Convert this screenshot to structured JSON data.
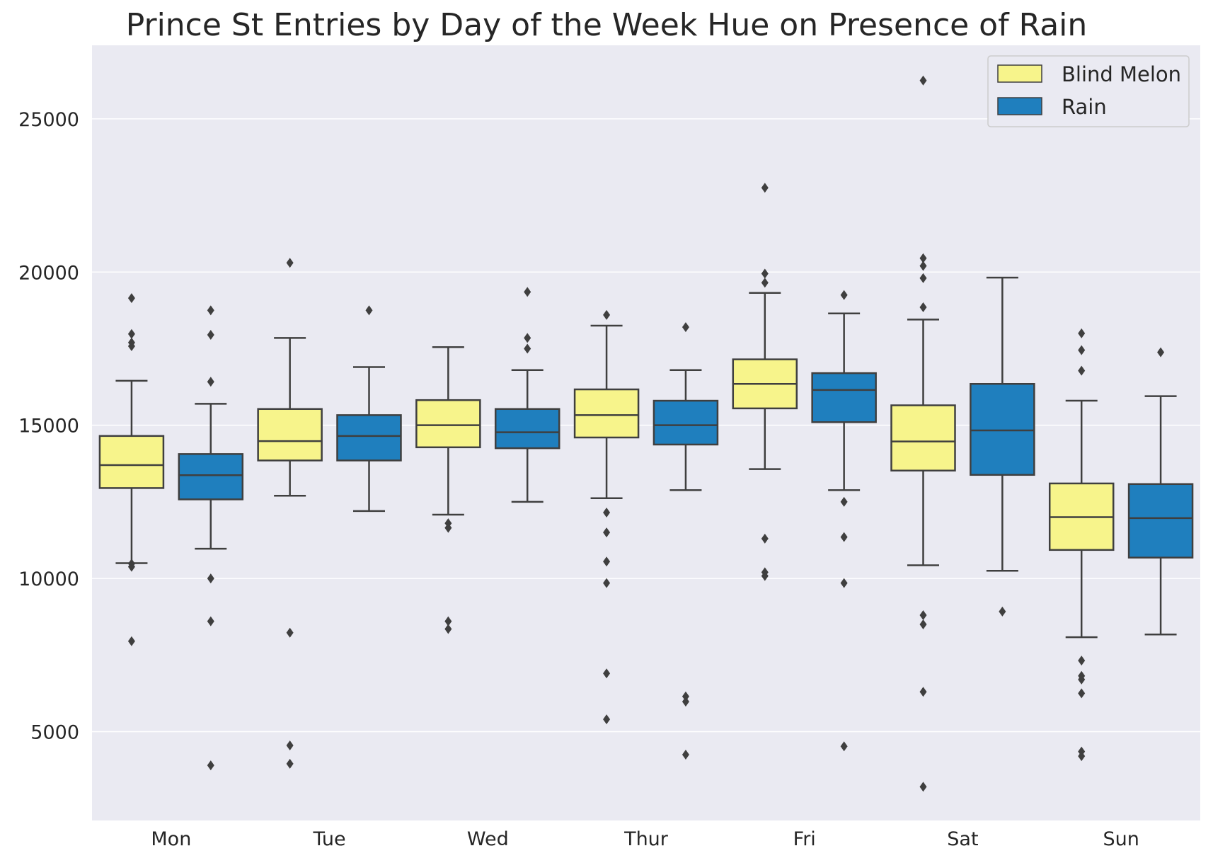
{
  "chart_data": {
    "type": "box",
    "title": "Prince St Entries by Day of the Week Hue on Presence of Rain",
    "xlabel": "",
    "ylabel": "",
    "ylim": [
      2100,
      27400
    ],
    "yticks": [
      5000,
      10000,
      15000,
      20000,
      25000
    ],
    "grid": true,
    "legend_position": "top-right",
    "categories": [
      "Mon",
      "Tue",
      "Wed",
      "Thur",
      "Fri",
      "Sat",
      "Sun"
    ],
    "series": [
      {
        "name": "Blind Melon",
        "color": "#f7f48b",
        "boxes": [
          {
            "whislo": 10500,
            "q1": 12950,
            "med": 13700,
            "q3": 14650,
            "whishi": 16450,
            "fliers": [
              19150,
              17980,
              17700,
              17580,
              10480,
              10380,
              7950
            ]
          },
          {
            "whislo": 12700,
            "q1": 13850,
            "med": 14480,
            "q3": 15530,
            "whishi": 17850,
            "fliers": [
              20300,
              8230,
              4550,
              3950
            ]
          },
          {
            "whislo": 12080,
            "q1": 14280,
            "med": 15000,
            "q3": 15820,
            "whishi": 17550,
            "fliers": [
              11800,
              11650,
              8600,
              8350
            ]
          },
          {
            "whislo": 12620,
            "q1": 14600,
            "med": 15330,
            "q3": 16170,
            "whishi": 18250,
            "fliers": [
              18600,
              12150,
              11500,
              10550,
              9850,
              6900,
              5400
            ]
          },
          {
            "whislo": 13570,
            "q1": 15550,
            "med": 16350,
            "q3": 17150,
            "whishi": 19320,
            "fliers": [
              22750,
              19950,
              19650,
              11300,
              10200,
              10080
            ]
          },
          {
            "whislo": 10430,
            "q1": 13520,
            "med": 14470,
            "q3": 15650,
            "whishi": 18450,
            "fliers": [
              26250,
              20450,
              20200,
              19800,
              18850,
              8800,
              8500,
              6300,
              3200
            ]
          },
          {
            "whislo": 8080,
            "q1": 10930,
            "med": 12000,
            "q3": 13100,
            "whishi": 15800,
            "fliers": [
              18000,
              17450,
              16780,
              7320,
              6820,
              6700,
              6250,
              4350,
              4200
            ]
          }
        ]
      },
      {
        "name": "Rain",
        "color": "#1f7fbe",
        "boxes": [
          {
            "whislo": 10970,
            "q1": 12580,
            "med": 13370,
            "q3": 14060,
            "whishi": 15700,
            "fliers": [
              18750,
              17950,
              16420,
              10000,
              8600,
              3900
            ]
          },
          {
            "whislo": 12200,
            "q1": 13850,
            "med": 14650,
            "q3": 15330,
            "whishi": 16900,
            "fliers": [
              18750
            ]
          },
          {
            "whislo": 12500,
            "q1": 14250,
            "med": 14770,
            "q3": 15530,
            "whishi": 16800,
            "fliers": [
              19350,
              17850,
              17500
            ]
          },
          {
            "whislo": 12880,
            "q1": 14370,
            "med": 15000,
            "q3": 15800,
            "whishi": 16800,
            "fliers": [
              18200,
              6150,
              5980,
              4250
            ]
          },
          {
            "whislo": 12880,
            "q1": 15100,
            "med": 16150,
            "q3": 16700,
            "whishi": 18650,
            "fliers": [
              19250,
              12500,
              11350,
              9850,
              4520
            ]
          },
          {
            "whislo": 10250,
            "q1": 13380,
            "med": 14830,
            "q3": 16350,
            "whishi": 19820,
            "fliers": [
              8920
            ]
          },
          {
            "whislo": 8170,
            "q1": 10680,
            "med": 11970,
            "q3": 13080,
            "whishi": 15950,
            "fliers": [
              17380
            ]
          }
        ]
      }
    ]
  }
}
